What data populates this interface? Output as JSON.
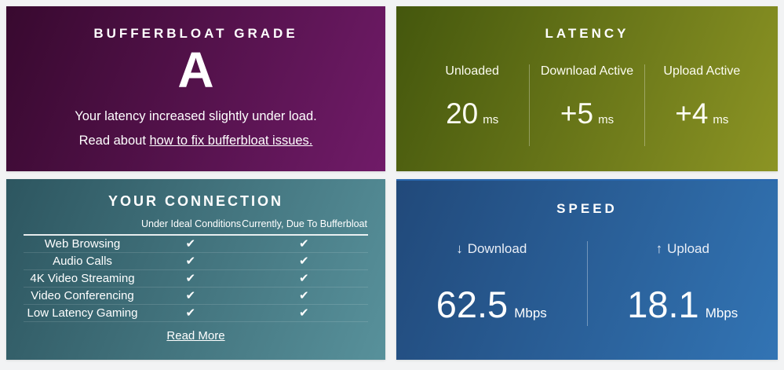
{
  "colors": {
    "page_background": "#f2f3f4",
    "text": "#ffffff",
    "grade_gradient": [
      "#38092f",
      "#701b68"
    ],
    "latency_gradient": [
      "#44570d",
      "#8c9424"
    ],
    "connection_gradient": [
      "#2d5660",
      "#58919b"
    ],
    "speed_gradient": [
      "#21497a",
      "#3274b4"
    ]
  },
  "panels": {
    "grade": {
      "title": "BUFFERBLOAT GRADE",
      "value": "A",
      "line1": "Your latency increased slightly under load.",
      "line2_prefix": "Read about ",
      "link": "how to fix bufferbloat issues."
    },
    "latency": {
      "title": "LATENCY",
      "columns": [
        {
          "label": "Unloaded",
          "value": "20",
          "unit": "ms"
        },
        {
          "label": "Download Active",
          "value": "+5",
          "unit": "ms"
        },
        {
          "label": "Upload Active",
          "value": "+4",
          "unit": "ms"
        }
      ]
    },
    "connection": {
      "title": "YOUR CONNECTION",
      "headers": [
        "Under Ideal Conditions",
        "Currently, Due To Bufferbloat"
      ],
      "rows": [
        {
          "label": "Web Browsing",
          "ideal": "✔",
          "current": "✔"
        },
        {
          "label": "Audio Calls",
          "ideal": "✔",
          "current": "✔"
        },
        {
          "label": "4K Video Streaming",
          "ideal": "✔",
          "current": "✔"
        },
        {
          "label": "Video Conferencing",
          "ideal": "✔",
          "current": "✔"
        },
        {
          "label": "Low Latency Gaming",
          "ideal": "✔",
          "current": "✔"
        }
      ],
      "read_more": "Read More"
    },
    "speed": {
      "title": "SPEED",
      "download": {
        "arrow": "↓",
        "label": "Download",
        "value": "62.5",
        "unit": "Mbps"
      },
      "upload": {
        "arrow": "↑",
        "label": "Upload",
        "value": "18.1",
        "unit": "Mbps"
      }
    }
  }
}
